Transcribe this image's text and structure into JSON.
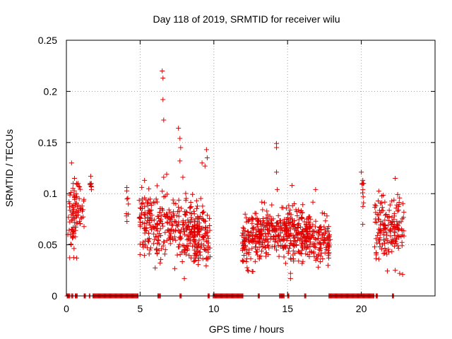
{
  "chart_data": {
    "type": "scatter",
    "title": "Day 118 of 2019, SRMTID for receiver wilu",
    "xlabel": "GPS time / hours",
    "ylabel": "SRMTID / TECUs",
    "xlim": [
      0,
      25
    ],
    "ylim": [
      0,
      0.25
    ],
    "xticks": [
      0,
      5,
      10,
      15,
      20
    ],
    "xtick_labels": [
      "0",
      "5",
      "10",
      "15",
      "20"
    ],
    "yticks": [
      0,
      0.05,
      0.1,
      0.15,
      0.2,
      0.25
    ],
    "ytick_labels": [
      "0",
      "0.05",
      "0.1",
      "0.15",
      "0.2",
      "0.25"
    ],
    "grid": true,
    "marker": "+",
    "color": "#e00000",
    "zero_value_intervals": [
      [
        0.05,
        0.25
      ],
      [
        0.35,
        0.45
      ],
      [
        0.6,
        0.75
      ],
      [
        1.2,
        1.3
      ],
      [
        1.55,
        1.6
      ],
      [
        1.8,
        4.9
      ],
      [
        6.2,
        6.4
      ],
      [
        7.7,
        7.8
      ],
      [
        9.6,
        9.7
      ],
      [
        9.95,
        12.0
      ],
      [
        13.0,
        13.1
      ],
      [
        14.45,
        14.8
      ],
      [
        15.0,
        15.1
      ],
      [
        16.15,
        16.25
      ],
      [
        17.8,
        20.9
      ],
      [
        21.0,
        21.1
      ],
      [
        22.1,
        22.2
      ]
    ],
    "clusters": [
      {
        "x_range": [
          0.1,
          0.6
        ],
        "center": 0.068,
        "spread": 0.014,
        "count": 32
      },
      {
        "x_range": [
          0.4,
          0.95
        ],
        "center": 0.08,
        "spread": 0.02,
        "count": 50
      },
      {
        "x_range": [
          0.95,
          1.2
        ],
        "center": 0.088,
        "spread": 0.01,
        "count": 10
      },
      {
        "x_range": [
          1.55,
          1.7
        ],
        "center": 0.108,
        "spread": 0.004,
        "count": 7
      },
      {
        "x_range": [
          4.05,
          4.25
        ],
        "center": 0.09,
        "spread": 0.008,
        "count": 8
      },
      {
        "x_range": [
          4.9,
          6.0
        ],
        "center": 0.072,
        "spread": 0.016,
        "count": 90
      },
      {
        "x_range": [
          6.0,
          7.6
        ],
        "center": 0.068,
        "spread": 0.016,
        "count": 120
      },
      {
        "x_range": [
          7.6,
          8.6
        ],
        "center": 0.065,
        "spread": 0.015,
        "count": 90
      },
      {
        "x_range": [
          8.6,
          9.75
        ],
        "center": 0.058,
        "spread": 0.016,
        "count": 130
      },
      {
        "x_range": [
          11.9,
          12.6
        ],
        "center": 0.055,
        "spread": 0.014,
        "count": 65
      },
      {
        "x_range": [
          12.6,
          13.7
        ],
        "center": 0.06,
        "spread": 0.014,
        "count": 120
      },
      {
        "x_range": [
          13.7,
          14.55
        ],
        "center": 0.063,
        "spread": 0.012,
        "count": 70
      },
      {
        "x_range": [
          14.6,
          15.6
        ],
        "center": 0.062,
        "spread": 0.013,
        "count": 110
      },
      {
        "x_range": [
          15.6,
          16.6
        ],
        "center": 0.062,
        "spread": 0.013,
        "count": 110
      },
      {
        "x_range": [
          16.6,
          17.9
        ],
        "center": 0.055,
        "spread": 0.013,
        "count": 100
      },
      {
        "x_range": [
          20.05,
          20.2
        ],
        "center": 0.105,
        "spread": 0.01,
        "count": 8
      },
      {
        "x_range": [
          20.9,
          21.7
        ],
        "center": 0.068,
        "spread": 0.014,
        "count": 70
      },
      {
        "x_range": [
          21.7,
          22.9
        ],
        "center": 0.068,
        "spread": 0.016,
        "count": 90
      }
    ],
    "notable_points": [
      {
        "x": 0.35,
        "y": 0.13
      },
      {
        "x": 0.55,
        "y": 0.115
      },
      {
        "x": 0.7,
        "y": 0.037
      },
      {
        "x": 1.65,
        "y": 0.117
      },
      {
        "x": 4.1,
        "y": 0.106
      },
      {
        "x": 5.3,
        "y": 0.113
      },
      {
        "x": 6.5,
        "y": 0.22
      },
      {
        "x": 6.55,
        "y": 0.213
      },
      {
        "x": 6.55,
        "y": 0.192
      },
      {
        "x": 6.6,
        "y": 0.172
      },
      {
        "x": 6.6,
        "y": 0.116
      },
      {
        "x": 6.8,
        "y": 0.119
      },
      {
        "x": 7.6,
        "y": 0.164
      },
      {
        "x": 7.7,
        "y": 0.154
      },
      {
        "x": 7.75,
        "y": 0.145
      },
      {
        "x": 7.7,
        "y": 0.132
      },
      {
        "x": 7.9,
        "y": 0.116
      },
      {
        "x": 8.0,
        "y": 0.017
      },
      {
        "x": 9.2,
        "y": 0.13
      },
      {
        "x": 9.4,
        "y": 0.127
      },
      {
        "x": 9.5,
        "y": 0.143
      },
      {
        "x": 9.55,
        "y": 0.135
      },
      {
        "x": 12.3,
        "y": 0.025
      },
      {
        "x": 12.6,
        "y": 0.024
      },
      {
        "x": 14.25,
        "y": 0.149
      },
      {
        "x": 14.25,
        "y": 0.145
      },
      {
        "x": 14.25,
        "y": 0.121
      },
      {
        "x": 14.3,
        "y": 0.104
      },
      {
        "x": 15.2,
        "y": 0.017
      },
      {
        "x": 15.2,
        "y": 0.022
      },
      {
        "x": 15.3,
        "y": 0.108
      },
      {
        "x": 16.9,
        "y": 0.104
      },
      {
        "x": 20.0,
        "y": 0.121
      },
      {
        "x": 20.1,
        "y": 0.113
      },
      {
        "x": 20.1,
        "y": 0.07
      },
      {
        "x": 20.15,
        "y": 0.091
      },
      {
        "x": 22.3,
        "y": 0.115
      },
      {
        "x": 22.6,
        "y": 0.022
      },
      {
        "x": 22.8,
        "y": 0.021
      },
      {
        "x": 22.3,
        "y": 0.025
      }
    ]
  }
}
